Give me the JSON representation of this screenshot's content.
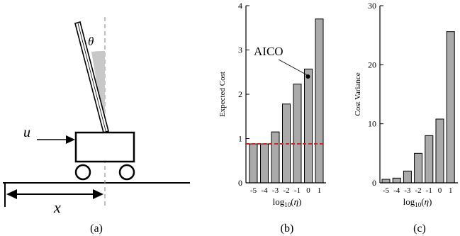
{
  "figure": {
    "panels": [
      {
        "label": "(a)"
      },
      {
        "label": "(b)"
      },
      {
        "label": "(c)"
      }
    ]
  },
  "cartpole": {
    "theta_label": "θ",
    "u_label": "u",
    "x_label": "x",
    "colors": {
      "line": "#000000",
      "dashed": "#999999",
      "wedge": "#c8c8c8",
      "pole": "#ffffff"
    }
  },
  "chart_data": [
    {
      "type": "bar",
      "panel": "(b)",
      "categories": [
        "-5",
        "-4",
        "-3",
        "-2",
        "-1",
        "0",
        "1"
      ],
      "values": [
        0.88,
        0.88,
        1.15,
        1.78,
        2.23,
        2.57,
        3.7
      ],
      "ylabel": "Expected Cost",
      "xlabel": "log10(η)",
      "ylim": [
        0,
        4
      ],
      "yticks": [
        0,
        1,
        2,
        3,
        4
      ],
      "reference_line": {
        "y": 0.88,
        "style": "dashed",
        "color": "#e0201b"
      },
      "annotation": {
        "text": "AICO",
        "x_category": "0",
        "y": 2.4
      },
      "bar_color": "#aaaaaa",
      "grid": false
    },
    {
      "type": "bar",
      "panel": "(c)",
      "categories": [
        "-5",
        "-4",
        "-3",
        "-2",
        "-1",
        "0",
        "1"
      ],
      "values": [
        0.6,
        0.8,
        2.0,
        5.0,
        8.0,
        10.8,
        25.6
      ],
      "ylabel": "Cost Variance",
      "xlabel": "log10(η)",
      "ylim": [
        0,
        30
      ],
      "yticks": [
        0,
        10,
        20,
        30
      ],
      "bar_color": "#aaaaaa",
      "grid": false
    }
  ]
}
